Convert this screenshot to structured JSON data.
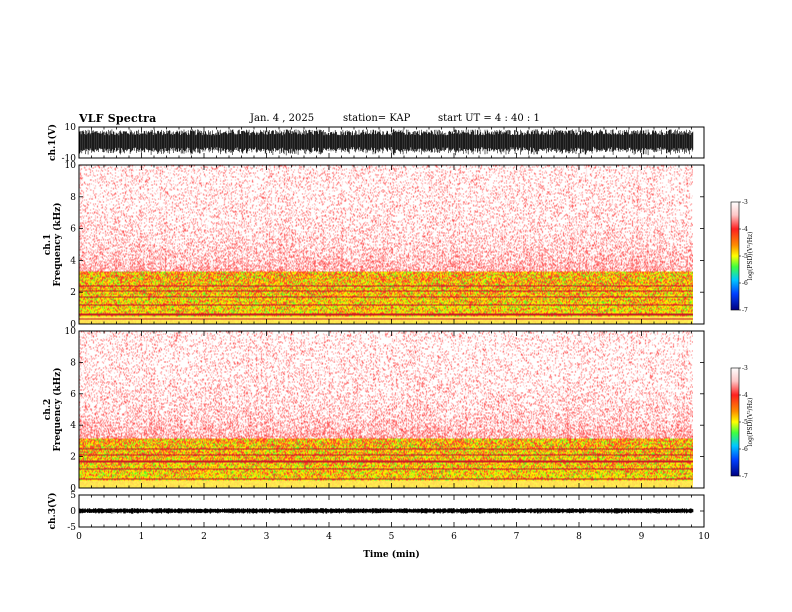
{
  "header": {
    "title": "VLF Spectra",
    "date": "Jan. 4 , 2025",
    "station": "station= KAP",
    "start_ut": "start UT = 4 : 40 : 1"
  },
  "colors": {
    "spec_background": "#ffffff",
    "spec_high": "#ff2a2a",
    "spec_mid": "#ffd000",
    "spec_low": "#30ff30",
    "waveform": "#000000"
  },
  "chart_data": [
    {
      "type": "line",
      "name": "ch1-waveform",
      "ylabel": "ch.1(V)",
      "ylim": [
        -10,
        10
      ],
      "yticks": [
        "10",
        "-10"
      ],
      "xlim": [
        0,
        10
      ],
      "x_extent": 9.83,
      "amplitude_typical": 8.5
    },
    {
      "type": "heatmap",
      "name": "ch1-spectrogram",
      "ylabel": "ch.1\nFrequency (kHz)",
      "ylim": [
        0,
        10
      ],
      "yticks": [
        "0",
        "2",
        "4",
        "6",
        "8",
        "10"
      ],
      "xlim": [
        0,
        10
      ],
      "x_extent": 9.83,
      "band_tone_khz": [
        0.3,
        0.6,
        1.2,
        1.7,
        2.1,
        2.4
      ],
      "dense_emission_top_khz": 3.3,
      "colorbar": {
        "label": "log(PSD)(V²/Hz)",
        "ticks": [
          "-3",
          "-4",
          "-5",
          "-6",
          "-7"
        ],
        "range": [
          -7,
          -3
        ]
      }
    },
    {
      "type": "heatmap",
      "name": "ch2-spectrogram",
      "ylabel": "ch.2\nFrequency (kHz)",
      "ylim": [
        0,
        10
      ],
      "yticks": [
        "0",
        "2",
        "4",
        "6",
        "8",
        "10"
      ],
      "xlim": [
        0,
        10
      ],
      "x_extent": 9.83,
      "band_tone_khz": [
        0.6,
        1.2,
        1.7,
        2.1,
        2.5
      ],
      "dense_emission_top_khz": 3.2,
      "colorbar": {
        "label": "log(PSD)(V²/Hz)",
        "ticks": [
          "-3",
          "-4",
          "-5",
          "-6",
          "-7"
        ],
        "range": [
          -7,
          -3
        ]
      }
    },
    {
      "type": "line",
      "name": "ch3-waveform",
      "ylabel": "ch.3(V)",
      "ylim": [
        -5,
        5
      ],
      "yticks": [
        "5",
        "0",
        "-5"
      ],
      "xlim": [
        0,
        10
      ],
      "x_extent": 9.83,
      "amplitude_typical": 0.9,
      "xlabel": "Time (min)",
      "xticks": [
        "0",
        "1",
        "2",
        "3",
        "4",
        "5",
        "6",
        "7",
        "8",
        "9",
        "10"
      ]
    }
  ]
}
